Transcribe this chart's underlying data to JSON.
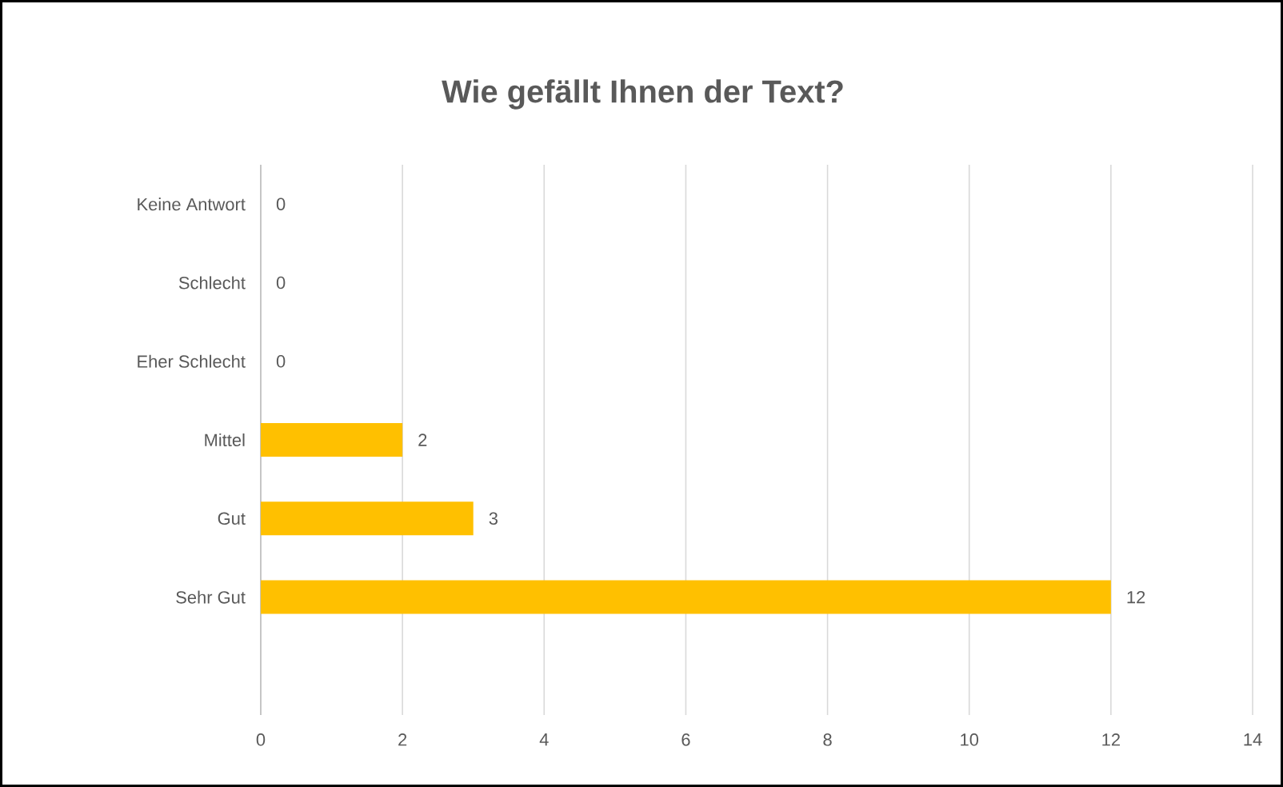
{
  "chart_data": {
    "type": "bar",
    "orientation": "horizontal",
    "title": "Wie gefällt Ihnen der Text?",
    "categories": [
      "Keine Antwort",
      "Schlecht",
      "Eher Schlecht",
      "Mittel",
      "Gut",
      "Sehr Gut"
    ],
    "values": [
      0,
      0,
      0,
      2,
      3,
      12
    ],
    "color": "#ffc000",
    "xlim": [
      0,
      14
    ],
    "xticks": [
      0,
      2,
      4,
      6,
      8,
      10,
      12,
      14
    ],
    "grid": "x",
    "data_labels": true
  }
}
